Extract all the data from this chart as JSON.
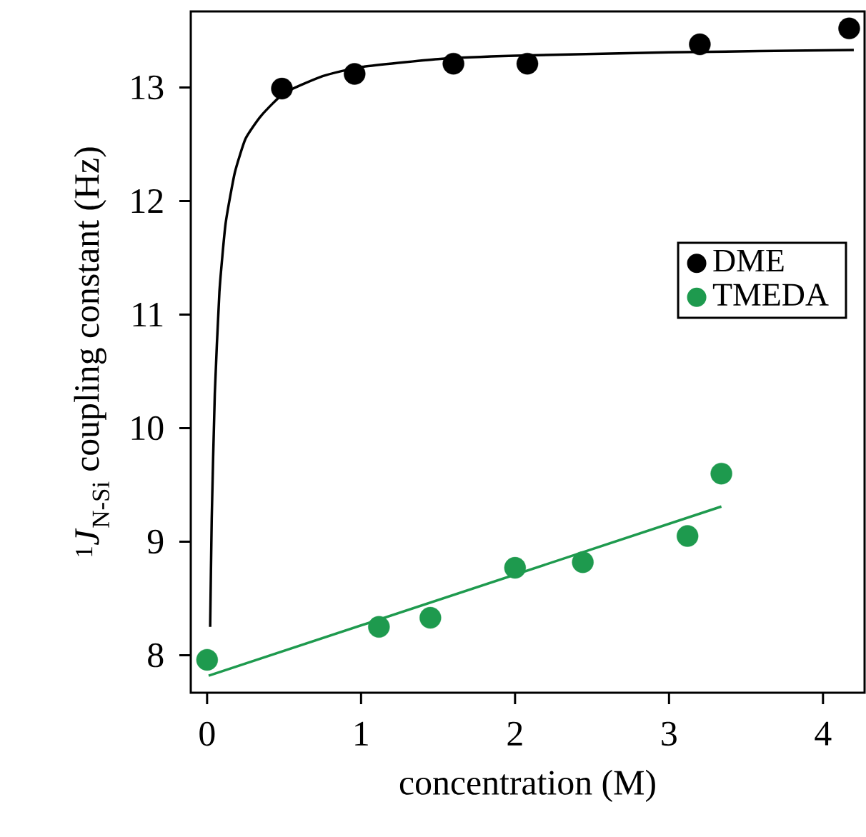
{
  "chart_data": {
    "type": "scatter",
    "xlabel": "concentration (M)",
    "ylabel": "$^{1}$*J*$_{N-Si}$ coupling constant (Hz)",
    "xlim": [
      -0.106,
      4.27
    ],
    "ylim": [
      7.67,
      13.67
    ],
    "xticks": [
      0,
      1,
      2,
      3,
      4
    ],
    "yticks": [
      8,
      9,
      10,
      11,
      12,
      13
    ],
    "legend": "right",
    "marker": "circle",
    "series": [
      {
        "name": "DME",
        "color": "#000000",
        "x": [
          0.486,
          0.958,
          1.6,
          2.08,
          3.2,
          4.17
        ],
        "values": [
          12.99,
          13.12,
          13.21,
          13.21,
          13.38,
          13.52
        ]
      },
      {
        "type": "line",
        "marker": "none",
        "color": "#000000",
        "x": [
          0.02,
          0.03,
          0.05,
          0.08,
          0.12,
          0.18,
          0.25,
          0.35,
          0.5,
          0.75,
          1.0,
          1.5,
          2.0,
          3.0,
          4.2
        ],
        "values": [
          8.25,
          9.2,
          10.3,
          11.2,
          11.8,
          12.25,
          12.55,
          12.75,
          12.95,
          13.1,
          13.18,
          13.25,
          13.28,
          13.31,
          13.33
        ]
      },
      {
        "name": "TMEDA",
        "color": "#1e9a4e",
        "x": [
          0.0,
          1.116,
          1.45,
          2.0,
          2.44,
          3.12,
          3.34
        ],
        "values": [
          7.96,
          8.25,
          8.33,
          8.77,
          8.82,
          9.05,
          9.6
        ]
      },
      {
        "type": "line",
        "marker": "none",
        "color": "#1e9a4e",
        "x": [
          0.01,
          3.34
        ],
        "values": [
          7.82,
          9.31
        ]
      }
    ]
  }
}
